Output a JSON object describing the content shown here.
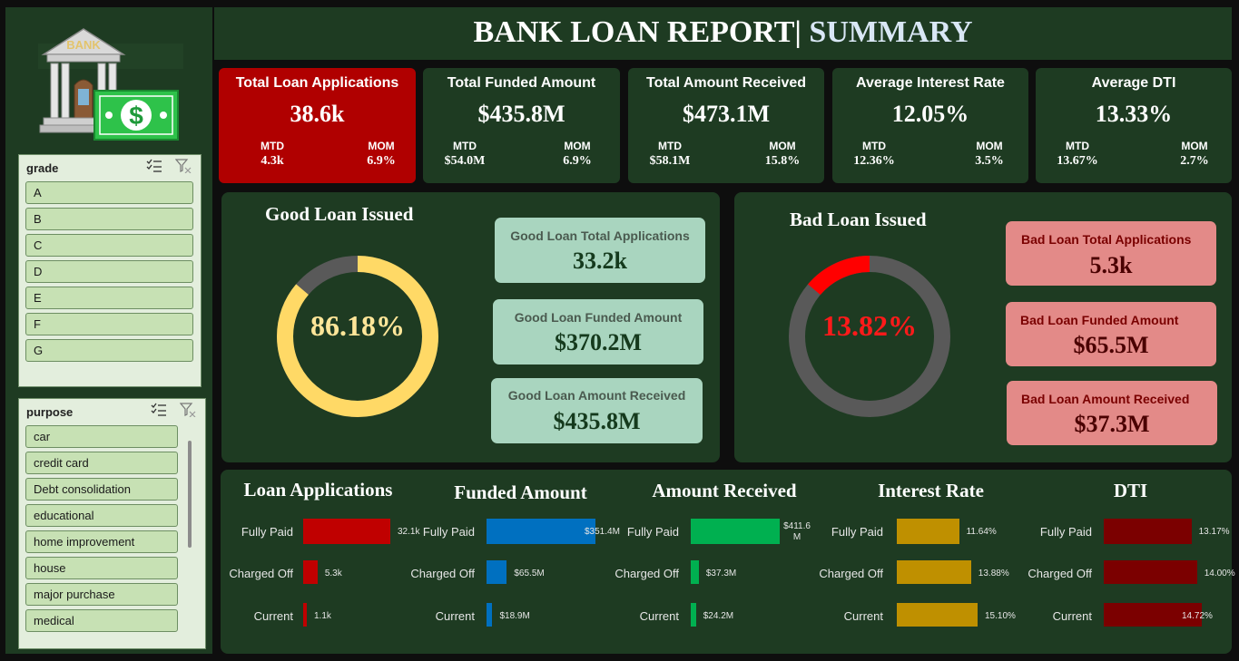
{
  "header": {
    "title": "BANK LOAN REPORT|",
    "title_suffix": " SUMMARY"
  },
  "logo": {
    "sign": "BANK",
    "currency_symbol": "$"
  },
  "slicers": {
    "grade": {
      "title": "grade",
      "items": [
        "A",
        "B",
        "C",
        "D",
        "E",
        "F",
        "G"
      ]
    },
    "purpose": {
      "title": "purpose",
      "items": [
        "car",
        "credit card",
        "Debt consolidation",
        "educational",
        "home improvement",
        "house",
        "major purchase",
        "medical"
      ]
    }
  },
  "kpis": [
    {
      "label": "Total Loan Applications",
      "value": "38.6k",
      "mtd_label": "MTD",
      "mtd": "4.3k",
      "mom_label": "MOM",
      "mom": "6.9%"
    },
    {
      "label": "Total Funded Amount",
      "value": "$435.8M",
      "mtd_label": "MTD",
      "mtd": "$54.0M",
      "mom_label": "MOM",
      "mom": "6.9%"
    },
    {
      "label": "Total Amount Received",
      "value": "$473.1M",
      "mtd_label": "MTD",
      "mtd": "$58.1M",
      "mom_label": "MOM",
      "mom": "15.8%"
    },
    {
      "label": "Average Interest Rate",
      "value": "12.05%",
      "mtd_label": "MTD",
      "mtd": "12.36%",
      "mom_label": "MOM",
      "mom": "3.5%"
    },
    {
      "label": "Average DTI",
      "value": "13.33%",
      "mtd_label": "MTD",
      "mtd": "13.67%",
      "mom_label": "MOM",
      "mom": "2.7%"
    }
  ],
  "good_loan": {
    "title": "Good Loan Issued",
    "percent_text": "86.18%",
    "percent": 86.18,
    "color": "#ffd966",
    "cards": [
      {
        "label": "Good Loan Total Applications",
        "value": "33.2k"
      },
      {
        "label": "Good Loan Funded Amount",
        "value": "$370.2M"
      },
      {
        "label": "Good Loan Amount Received",
        "value": "$435.8M"
      }
    ]
  },
  "bad_loan": {
    "title": "Bad Loan Issued",
    "percent_text": "13.82%",
    "percent": 13.82,
    "color": "#ff0000",
    "cards": [
      {
        "label": "Bad Loan Total Applications",
        "value": "5.3k"
      },
      {
        "label": "Bad Loan Funded Amount",
        "value": "$65.5M"
      },
      {
        "label": "Bad Loan Amount Received",
        "value": "$37.3M"
      }
    ]
  },
  "status_charts": [
    {
      "title": "Loan Applications",
      "color": "#c00000",
      "categories": [
        "Fully Paid",
        "Charged Off",
        "Current"
      ],
      "values": [
        32.1,
        5.3,
        1.1
      ],
      "labels": [
        "32.1k",
        "5.3k",
        "1.1k"
      ],
      "max": 32.1
    },
    {
      "title": "Funded Amount",
      "color": "#0070c0",
      "categories": [
        "Fully Paid",
        "Charged Off",
        "Current"
      ],
      "values": [
        351.4,
        65.5,
        18.9
      ],
      "labels": [
        "$351.4M",
        "$65.5M",
        "$18.9M"
      ],
      "max": 351.4
    },
    {
      "title": "Amount Received",
      "color": "#00b050",
      "categories": [
        "Fully Paid",
        "Charged Off",
        "Current"
      ],
      "values": [
        411.6,
        37.3,
        24.2
      ],
      "labels": [
        "$411.6 M",
        "$37.3M",
        "$24.2M"
      ],
      "max": 411.6
    },
    {
      "title": "Interest Rate",
      "color": "#bf9000",
      "categories": [
        "Fully Paid",
        "Charged Off",
        "Current"
      ],
      "values": [
        11.64,
        13.88,
        15.1
      ],
      "labels": [
        "11.64%",
        "13.88%",
        "15.10%"
      ],
      "max": 15.1
    },
    {
      "title": "DTI",
      "color": "#7b0000",
      "categories": [
        "Fully Paid",
        "Charged Off",
        "Current"
      ],
      "values": [
        13.17,
        14.0,
        14.72
      ],
      "labels": [
        "13.17%",
        "14.00%",
        "14.72%"
      ],
      "max": 14.72
    }
  ]
}
